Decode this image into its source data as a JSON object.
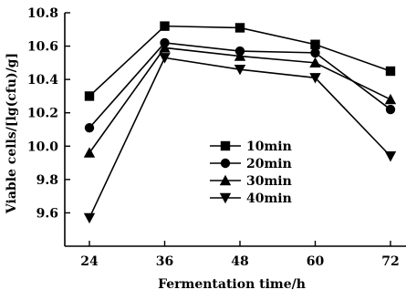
{
  "chart_data": {
    "type": "line",
    "title": "",
    "xlabel": "Fermentation time/h",
    "ylabel": "Viable cells/[lg(cfu)/g]",
    "x": [
      24,
      36,
      48,
      60,
      72
    ],
    "x_tick_labels": [
      "24",
      "36",
      "48",
      "60",
      "72"
    ],
    "xlim": [
      18,
      75
    ],
    "ylim": [
      9.4,
      10.8
    ],
    "y_ticks": [
      9.6,
      9.8,
      10.0,
      10.2,
      10.4,
      10.6,
      10.8
    ],
    "y_tick_labels": [
      "9.6",
      "9.8",
      "10.0",
      "10.2",
      "10.4",
      "10.6",
      "10.8"
    ],
    "grid": false,
    "legend_position": "lower-right",
    "series": [
      {
        "name": "10min",
        "marker": "square",
        "values": [
          10.3,
          10.72,
          10.71,
          10.61,
          10.45
        ]
      },
      {
        "name": "20min",
        "marker": "circle",
        "values": [
          10.11,
          10.62,
          10.57,
          10.56,
          10.22
        ]
      },
      {
        "name": "30min",
        "marker": "triangle-up",
        "values": [
          9.96,
          10.59,
          10.54,
          10.5,
          10.28
        ]
      },
      {
        "name": "40min",
        "marker": "triangle-down",
        "values": [
          9.57,
          10.53,
          10.46,
          10.41,
          9.94
        ]
      }
    ],
    "line_color": "#000000"
  }
}
